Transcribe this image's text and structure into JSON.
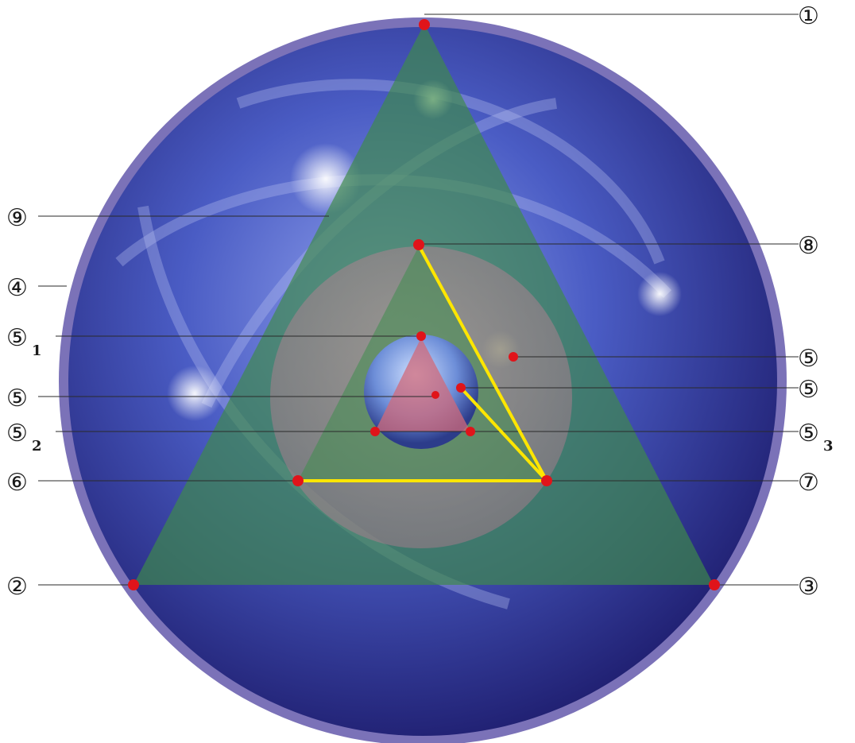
{
  "colors": {
    "outer_ring": "#7b72b8",
    "sphere_core": "#5a6fd0",
    "sphere_edge": "#1c1a6a",
    "triangle": "#3e8a4a",
    "middle_sphere": "#c98a8a",
    "inner_sphere": "#8fb0e8",
    "inner_triangle": "#d06a7a",
    "yellow_lines": "#ffe600",
    "points": "#e0141a"
  },
  "labels": {
    "l1": {
      "main": "①",
      "sub": ""
    },
    "l2": {
      "main": "②",
      "sub": ""
    },
    "l3": {
      "main": "③",
      "sub": ""
    },
    "l4": {
      "main": "④",
      "sub": ""
    },
    "l5_1": {
      "main": "⑤",
      "sub": "1"
    },
    "l5_center": {
      "main": "⑤",
      "sub": ""
    },
    "l5_2": {
      "main": "⑤",
      "sub": "2"
    },
    "l6": {
      "main": "⑥",
      "sub": ""
    },
    "l7": {
      "main": "⑦",
      "sub": ""
    },
    "l8": {
      "main": "⑧",
      "sub": ""
    },
    "l9": {
      "main": "⑨",
      "sub": ""
    },
    "r5_upper": {
      "main": "⑤",
      "sub": ""
    },
    "r5_mid": {
      "main": "⑤",
      "sub": ""
    },
    "r5_3": {
      "main": "⑤",
      "sub": "3"
    }
  }
}
